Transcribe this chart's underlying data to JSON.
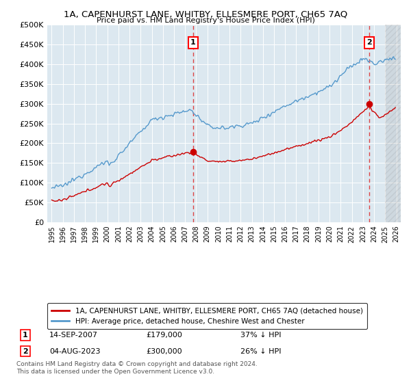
{
  "title": "1A, CAPENHURST LANE, WHITBY, ELLESMERE PORT, CH65 7AQ",
  "subtitle": "Price paid vs. HM Land Registry's House Price Index (HPI)",
  "legend_line1": "1A, CAPENHURST LANE, WHITBY, ELLESMERE PORT, CH65 7AQ (detached house)",
  "legend_line2": "HPI: Average price, detached house, Cheshire West and Chester",
  "annotation1_label": "1",
  "annotation1_date": "14-SEP-2007",
  "annotation1_price": "£179,000",
  "annotation1_pct": "37% ↓ HPI",
  "annotation2_label": "2",
  "annotation2_date": "04-AUG-2023",
  "annotation2_price": "£300,000",
  "annotation2_pct": "26% ↓ HPI",
  "footnote": "Contains HM Land Registry data © Crown copyright and database right 2024.\nThis data is licensed under the Open Government Licence v3.0.",
  "price_paid_color": "#cc0000",
  "hpi_color": "#5599cc",
  "annotation_line_color": "#dd4444",
  "background_plot": "#dce8f0",
  "background_fig": "#ffffff",
  "ylim": [
    0,
    500000
  ],
  "yticks": [
    0,
    50000,
    100000,
    150000,
    200000,
    250000,
    300000,
    350000,
    400000,
    450000,
    500000
  ],
  "sale1_year": 2007.71,
  "sale1_price": 179000,
  "sale2_year": 2023.58,
  "sale2_price": 300000,
  "xmin": 1994.6,
  "xmax": 2026.4
}
